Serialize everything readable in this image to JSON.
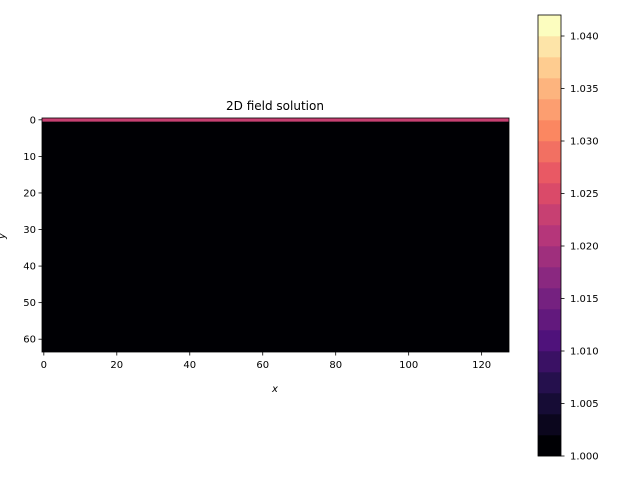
{
  "chart_data": {
    "type": "heatmap",
    "title": "2D field solution",
    "xlabel": "x",
    "ylabel": "y",
    "xlim": [
      -0.5,
      127.5
    ],
    "ylim": [
      63.5,
      -0.5
    ],
    "x_ticks": [
      "0",
      "20",
      "40",
      "60",
      "80",
      "100",
      "120"
    ],
    "y_ticks": [
      "0",
      "10",
      "20",
      "30",
      "40",
      "50",
      "60"
    ],
    "field": {
      "grid_shape": [
        64,
        128
      ],
      "row_values": [
        {
          "row": 0,
          "value": 1.0225
        },
        {
          "rows": "1-63",
          "value": 1.0
        }
      ]
    },
    "colormap": "magma",
    "colorbar": {
      "range": [
        1.0,
        1.042
      ],
      "levels": 21,
      "ticks": [
        "1.000",
        "1.005",
        "1.010",
        "1.015",
        "1.020",
        "1.025",
        "1.030",
        "1.035",
        "1.040"
      ]
    }
  }
}
